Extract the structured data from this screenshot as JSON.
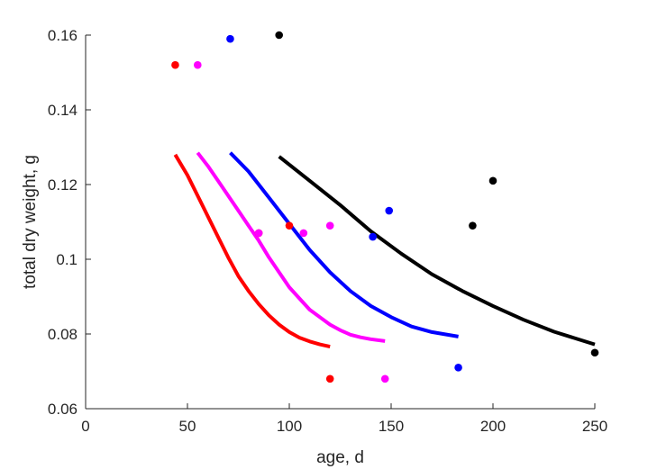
{
  "chart_data": {
    "type": "scatter",
    "title": "",
    "xlabel": "age, d",
    "ylabel": "total dry weight, g",
    "xlim": [
      0,
      250
    ],
    "ylim": [
      0.06,
      0.16
    ],
    "xticks": [
      0,
      50,
      100,
      150,
      200,
      250
    ],
    "yticks": [
      0.06,
      0.08,
      0.1,
      0.12,
      0.14,
      0.16
    ],
    "xtick_labels": [
      "0",
      "50",
      "100",
      "150",
      "200",
      "250"
    ],
    "ytick_labels": [
      "0.06",
      "0.08",
      "0.1",
      "0.12",
      "0.14",
      "0.16"
    ],
    "grid": false,
    "legend": "none",
    "series": [
      {
        "color": "#ff0000",
        "points": {
          "x": [
            44,
            85,
            100,
            120
          ],
          "y": [
            0.152,
            0.107,
            0.109,
            0.068
          ]
        },
        "fit": {
          "x": [
            44,
            50,
            55,
            60,
            65,
            70,
            75,
            80,
            85,
            90,
            95,
            100,
            105,
            110,
            115,
            120
          ],
          "y": [
            0.128,
            0.1225,
            0.117,
            0.1115,
            0.106,
            0.1005,
            0.0955,
            0.0915,
            0.088,
            0.085,
            0.0825,
            0.0805,
            0.079,
            0.078,
            0.0772,
            0.0766
          ]
        }
      },
      {
        "color": "#ff00ff",
        "points": {
          "x": [
            55,
            85,
            107,
            120,
            147
          ],
          "y": [
            0.152,
            0.107,
            0.107,
            0.109,
            0.068
          ]
        },
        "fit": {
          "x": [
            55,
            60,
            65,
            70,
            75,
            80,
            85,
            90,
            95,
            100,
            105,
            110,
            115,
            120,
            125,
            130,
            135,
            140,
            147
          ],
          "y": [
            0.1285,
            0.125,
            0.121,
            0.117,
            0.113,
            0.109,
            0.105,
            0.1005,
            0.0965,
            0.0925,
            0.0895,
            0.0865,
            0.0845,
            0.0825,
            0.081,
            0.0798,
            0.0791,
            0.0786,
            0.0781
          ]
        }
      },
      {
        "color": "#0000ff",
        "points": {
          "x": [
            71,
            141,
            149,
            183
          ],
          "y": [
            0.159,
            0.106,
            0.113,
            0.071
          ]
        },
        "fit": {
          "x": [
            71,
            80,
            90,
            100,
            110,
            120,
            130,
            140,
            150,
            160,
            170,
            183
          ],
          "y": [
            0.1285,
            0.1235,
            0.1165,
            0.1095,
            0.1025,
            0.0965,
            0.0915,
            0.0875,
            0.0845,
            0.082,
            0.0805,
            0.0793
          ]
        }
      },
      {
        "color": "#000000",
        "points": {
          "x": [
            95,
            190,
            200,
            250
          ],
          "y": [
            0.16,
            0.109,
            0.121,
            0.075
          ]
        },
        "fit": {
          "x": [
            95,
            110,
            125,
            140,
            155,
            170,
            185,
            200,
            215,
            230,
            250
          ],
          "y": [
            0.1275,
            0.121,
            0.1145,
            0.1075,
            0.1015,
            0.096,
            0.0915,
            0.0875,
            0.0838,
            0.0806,
            0.0772
          ]
        }
      }
    ]
  }
}
